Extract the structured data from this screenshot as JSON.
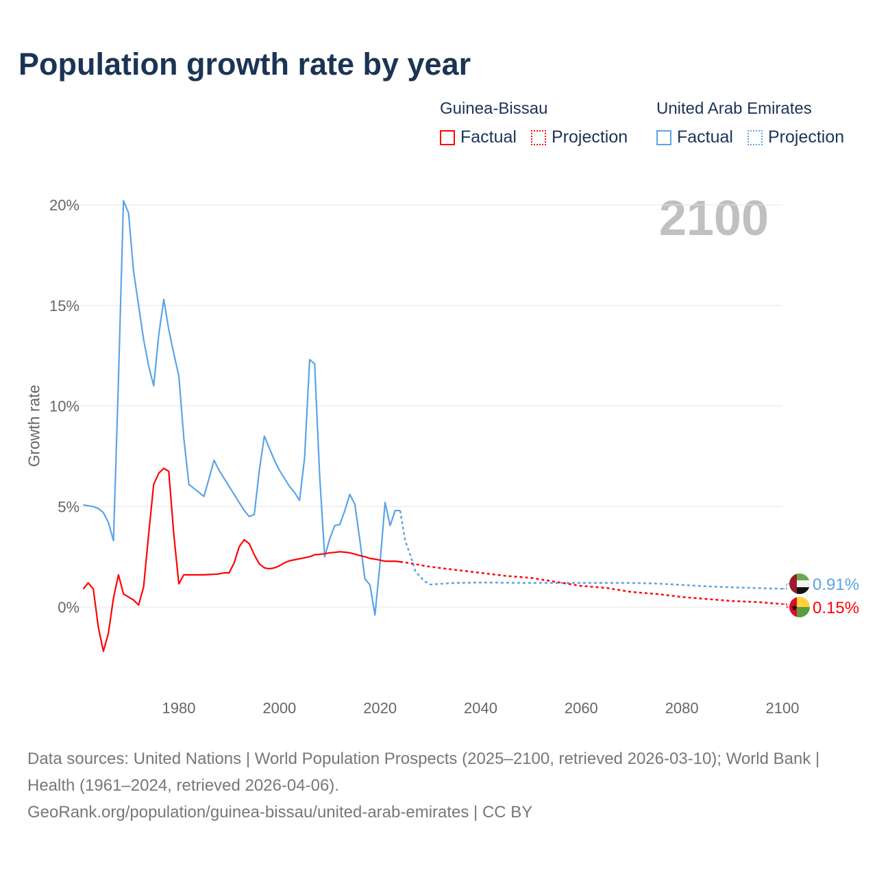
{
  "title": "Population growth rate by year",
  "legend": {
    "groups": [
      {
        "name": "Guinea-Bissau",
        "factual": "Factual",
        "projection": "Projection",
        "color": "#ff0000"
      },
      {
        "name": "United Arab Emirates",
        "factual": "Factual",
        "projection": "Projection",
        "color": "#5aa3e8"
      }
    ]
  },
  "current_year": "2100",
  "sources": {
    "line1": "Data sources: United Nations | World Population Prospects (2025–2100, retrieved 2026-03-10); World Bank | Health (1961–2024, retrieved 2026-04-06).",
    "line2": "GeoRank.org/population/guinea-bissau/united-arab-emirates | CC BY"
  },
  "chart_data": {
    "type": "line",
    "title": "Population growth rate by year",
    "xlabel": "",
    "ylabel": "Growth rate",
    "xlim": [
      1961,
      2100
    ],
    "ylim": [
      -3,
      21
    ],
    "x_ticks": [
      "1980",
      "2000",
      "2020",
      "2040",
      "2060",
      "2080",
      "2100"
    ],
    "y_ticks": [
      "0%",
      "5%",
      "10%",
      "15%",
      "20%"
    ],
    "y_tick_values": [
      0,
      5,
      10,
      15,
      20
    ],
    "x_tick_values": [
      1980,
      2000,
      2020,
      2040,
      2060,
      2080,
      2100
    ],
    "grid": true,
    "legend_position": "top-right",
    "series": [
      {
        "name": "United Arab Emirates",
        "color": "#5aa3e8",
        "end_label": "0.91%",
        "factual": {
          "x": [
            1961,
            1962,
            1963,
            1964,
            1965,
            1966,
            1967,
            1968,
            1969,
            1970,
            1971,
            1972,
            1973,
            1974,
            1975,
            1976,
            1977,
            1978,
            1979,
            1980,
            1981,
            1982,
            1983,
            1984,
            1985,
            1986,
            1987,
            1988,
            1989,
            1990,
            1991,
            1992,
            1993,
            1994,
            1995,
            1996,
            1997,
            1998,
            1999,
            2000,
            2001,
            2002,
            2003,
            2004,
            2005,
            2006,
            2007,
            2008,
            2009,
            2010,
            2011,
            2012,
            2013,
            2014,
            2015,
            2016,
            2017,
            2018,
            2019,
            2020,
            2021,
            2022,
            2023,
            2024
          ],
          "y": [
            5.08,
            5.04,
            5.0,
            4.9,
            4.7,
            4.2,
            3.3,
            11.3,
            20.2,
            19.6,
            16.7,
            15.0,
            13.3,
            12.0,
            11.0,
            13.5,
            15.3,
            13.8,
            12.6,
            11.5,
            8.4,
            6.1,
            5.9,
            5.7,
            5.5,
            6.4,
            7.3,
            6.8,
            6.4,
            6.0,
            5.6,
            5.2,
            4.8,
            4.5,
            4.6,
            6.8,
            8.5,
            7.9,
            7.3,
            6.8,
            6.4,
            6.0,
            5.7,
            5.3,
            7.4,
            12.3,
            12.1,
            6.5,
            2.5,
            3.4,
            4.05,
            4.1,
            4.8,
            5.6,
            5.1,
            3.3,
            1.4,
            1.1,
            -0.4,
            2.2,
            5.2,
            4.05,
            4.8,
            4.8
          ]
        },
        "projection": {
          "x": [
            2024,
            2025,
            2026,
            2027,
            2028,
            2029,
            2030,
            2035,
            2040,
            2045,
            2050,
            2055,
            2060,
            2065,
            2070,
            2075,
            2080,
            2085,
            2090,
            2095,
            2100
          ],
          "y": [
            4.8,
            3.3,
            2.6,
            1.8,
            1.5,
            1.26,
            1.12,
            1.2,
            1.22,
            1.21,
            1.2,
            1.2,
            1.2,
            1.2,
            1.2,
            1.17,
            1.1,
            1.03,
            0.98,
            0.94,
            0.91
          ]
        }
      },
      {
        "name": "Guinea-Bissau",
        "color": "#ff0000",
        "end_label": "0.15%",
        "factual": {
          "x": [
            1961,
            1962,
            1963,
            1964,
            1965,
            1966,
            1967,
            1968,
            1969,
            1970,
            1971,
            1972,
            1973,
            1974,
            1975,
            1976,
            1977,
            1978,
            1979,
            1980,
            1981,
            1982,
            1983,
            1984,
            1985,
            1986,
            1987,
            1988,
            1989,
            1990,
            1991,
            1992,
            1993,
            1994,
            1995,
            1996,
            1997,
            1998,
            1999,
            2000,
            2001,
            2002,
            2003,
            2004,
            2005,
            2006,
            2007,
            2008,
            2009,
            2010,
            2011,
            2012,
            2013,
            2014,
            2015,
            2016,
            2017,
            2018,
            2019,
            2020,
            2021,
            2022,
            2023,
            2024
          ],
          "y": [
            0.9,
            1.2,
            0.9,
            -1.0,
            -2.2,
            -1.3,
            0.45,
            1.6,
            0.65,
            0.5,
            0.35,
            0.1,
            1.0,
            3.6,
            6.1,
            6.65,
            6.9,
            6.75,
            3.6,
            1.15,
            1.6,
            1.6,
            1.6,
            1.6,
            1.6,
            1.62,
            1.63,
            1.65,
            1.7,
            1.7,
            2.2,
            3.0,
            3.35,
            3.15,
            2.6,
            2.15,
            1.95,
            1.9,
            1.95,
            2.05,
            2.2,
            2.3,
            2.35,
            2.4,
            2.45,
            2.5,
            2.6,
            2.62,
            2.65,
            2.7,
            2.72,
            2.75,
            2.73,
            2.7,
            2.63,
            2.56,
            2.5,
            2.42,
            2.38,
            2.33,
            2.28,
            2.28,
            2.28,
            2.25
          ]
        },
        "projection": {
          "x": [
            2024,
            2025,
            2030,
            2035,
            2040,
            2045,
            2050,
            2055,
            2060,
            2065,
            2070,
            2075,
            2080,
            2085,
            2090,
            2095,
            2100
          ],
          "y": [
            2.25,
            2.22,
            2.0,
            1.85,
            1.7,
            1.55,
            1.45,
            1.25,
            1.05,
            0.95,
            0.75,
            0.65,
            0.5,
            0.4,
            0.3,
            0.25,
            0.15
          ]
        }
      }
    ]
  }
}
